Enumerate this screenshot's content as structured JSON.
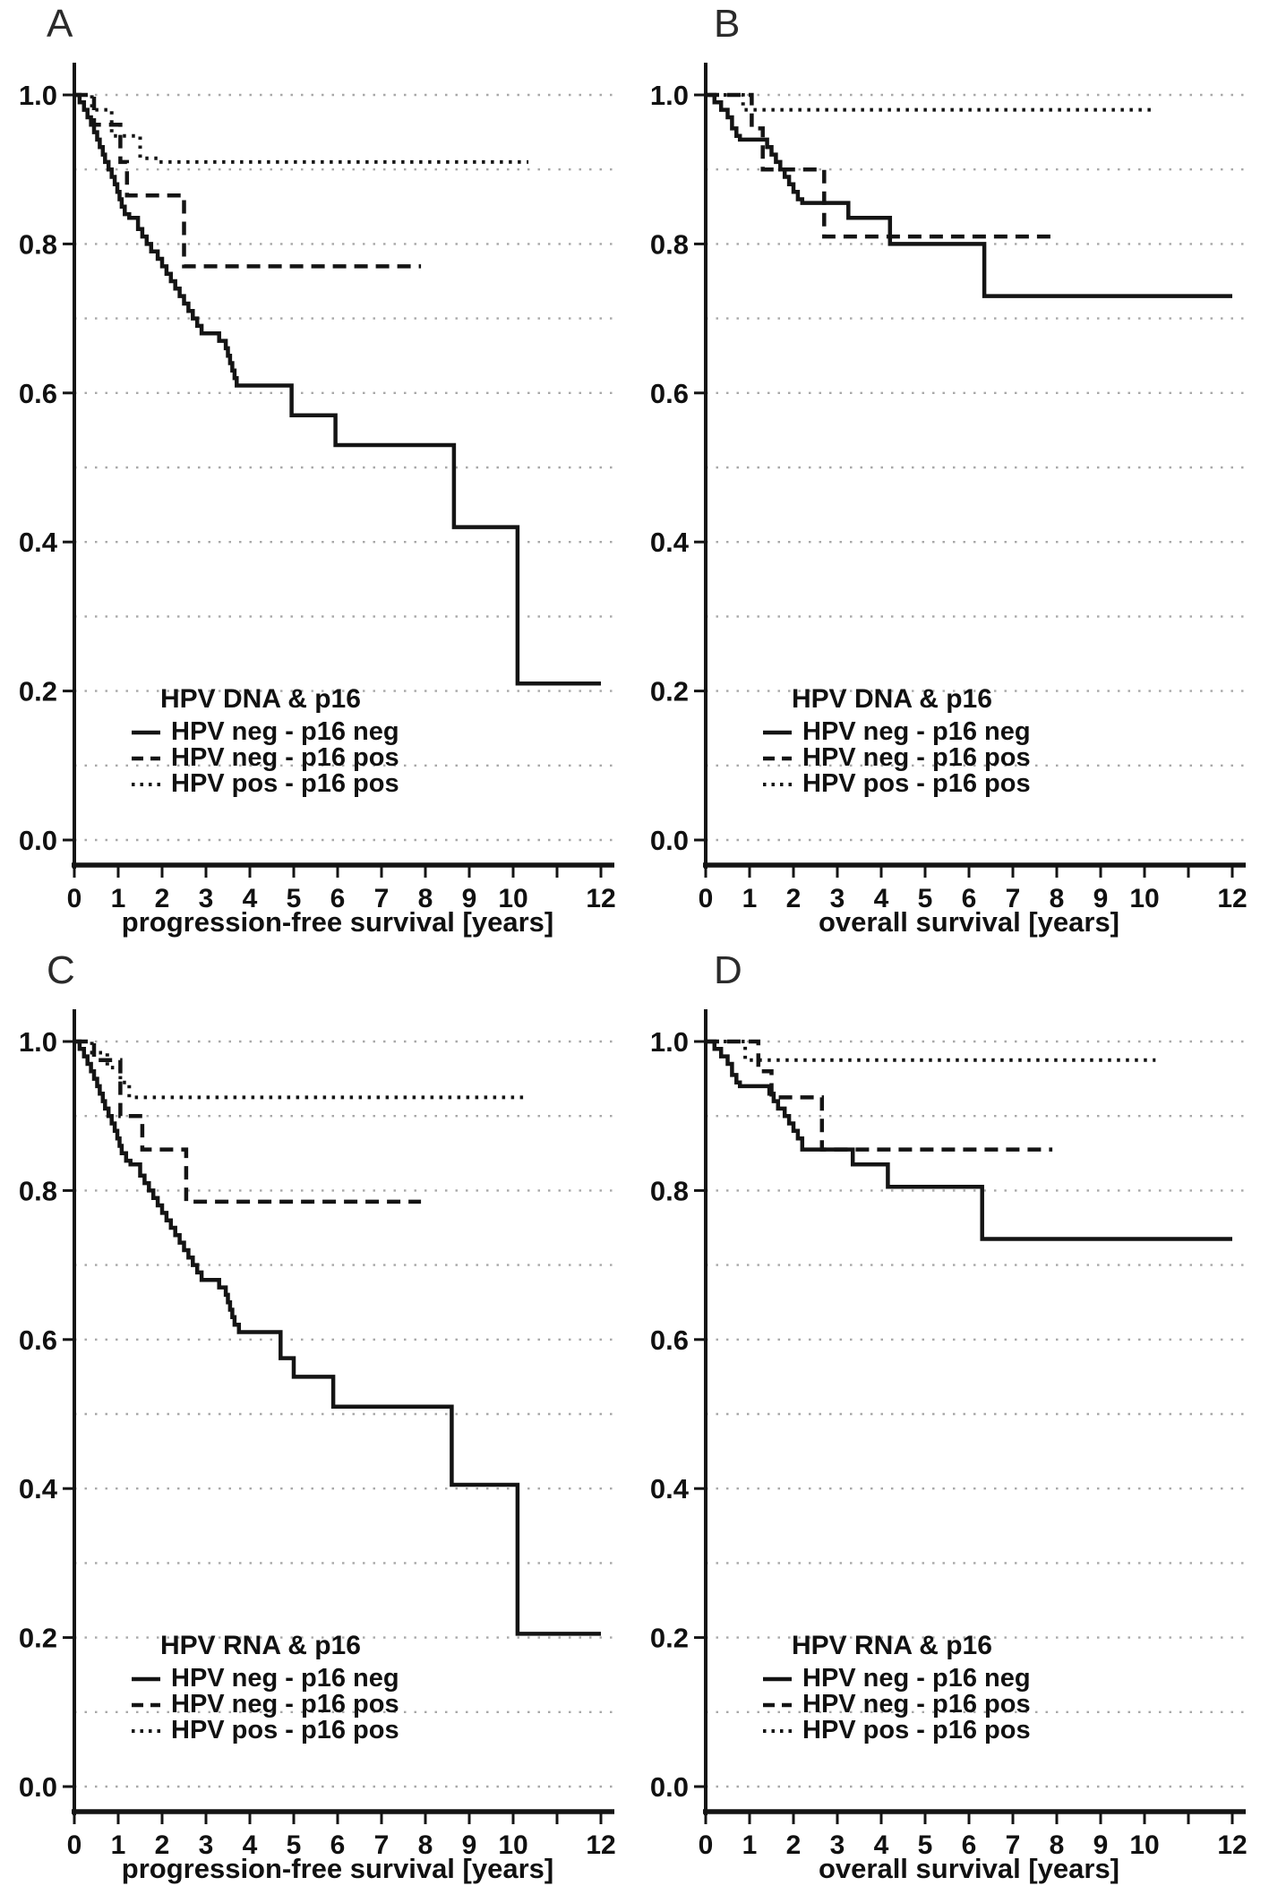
{
  "figure": {
    "background": "#ffffff",
    "curve_color": "#141414",
    "grid_color": "#a8a8a8",
    "text_color": "#111111",
    "grid_style": "dotted",
    "n_panels": 4
  },
  "chart_data": [
    {
      "panel_letter": "A",
      "type": "line",
      "subtype": "kaplan-meier-step",
      "legend_title": "HPV DNA & p16",
      "xlabel": "progression-free survival [years]",
      "ylabel": "",
      "xlim": [
        0,
        12
      ],
      "ylim": [
        0.0,
        1.0
      ],
      "xticks": [
        0,
        1,
        2,
        3,
        4,
        5,
        6,
        7,
        8,
        9,
        10,
        11,
        12
      ],
      "xtick_labels": [
        "0",
        "1",
        "2",
        "3",
        "4",
        "5",
        "6",
        "7",
        "8",
        "9",
        "10",
        "",
        "12"
      ],
      "yticks": [
        1.0,
        0.8,
        0.6,
        0.4,
        0.2,
        0.0
      ],
      "ytick_labels": [
        "1.0",
        "0.8",
        "0.6",
        "0.4",
        "0.2",
        "0.0"
      ],
      "grid_y_step": 0.1,
      "legend_position": "inside-lower-left",
      "series": [
        {
          "name": "HPV neg - p16 neg",
          "line": "solid",
          "points": [
            [
              0,
              1
            ],
            [
              0.12,
              0.99
            ],
            [
              0.22,
              0.98
            ],
            [
              0.3,
              0.97
            ],
            [
              0.38,
              0.96
            ],
            [
              0.45,
              0.95
            ],
            [
              0.52,
              0.94
            ],
            [
              0.58,
              0.93
            ],
            [
              0.65,
              0.92
            ],
            [
              0.7,
              0.91
            ],
            [
              0.78,
              0.9
            ],
            [
              0.85,
              0.89
            ],
            [
              0.92,
              0.88
            ],
            [
              0.98,
              0.87
            ],
            [
              1.03,
              0.86
            ],
            [
              1.08,
              0.85
            ],
            [
              1.15,
              0.84
            ],
            [
              1.25,
              0.835
            ],
            [
              1.45,
              0.82
            ],
            [
              1.55,
              0.81
            ],
            [
              1.65,
              0.8
            ],
            [
              1.75,
              0.79
            ],
            [
              1.9,
              0.78
            ],
            [
              2.0,
              0.77
            ],
            [
              2.1,
              0.76
            ],
            [
              2.2,
              0.75
            ],
            [
              2.3,
              0.74
            ],
            [
              2.4,
              0.73
            ],
            [
              2.5,
              0.72
            ],
            [
              2.6,
              0.71
            ],
            [
              2.7,
              0.7
            ],
            [
              2.8,
              0.69
            ],
            [
              2.9,
              0.68
            ],
            [
              3.3,
              0.67
            ],
            [
              3.45,
              0.66
            ],
            [
              3.5,
              0.65
            ],
            [
              3.55,
              0.64
            ],
            [
              3.6,
              0.63
            ],
            [
              3.65,
              0.62
            ],
            [
              3.7,
              0.61
            ],
            [
              4.95,
              0.57
            ],
            [
              5.95,
              0.53
            ],
            [
              8.65,
              0.42
            ],
            [
              10.1,
              0.21
            ],
            [
              12,
              0.21
            ]
          ]
        },
        {
          "name": "HPV neg - p16 pos",
          "line": "dashed",
          "points": [
            [
              0,
              1
            ],
            [
              0.45,
              0.96
            ],
            [
              1.05,
              0.91
            ],
            [
              1.2,
              0.865
            ],
            [
              2.5,
              0.77
            ],
            [
              7.9,
              0.77
            ]
          ]
        },
        {
          "name": "HPV pos - p16 pos",
          "line": "dotted",
          "points": [
            [
              0,
              1
            ],
            [
              0.4,
              0.98
            ],
            [
              0.85,
              0.945
            ],
            [
              1.5,
              0.915
            ],
            [
              1.9,
              0.91
            ],
            [
              10.35,
              0.91
            ]
          ]
        }
      ]
    },
    {
      "panel_letter": "B",
      "type": "line",
      "subtype": "kaplan-meier-step",
      "legend_title": "HPV DNA & p16",
      "xlabel": "overall survival [years]",
      "ylabel": "",
      "xlim": [
        0,
        12
      ],
      "ylim": [
        0.0,
        1.0
      ],
      "xticks": [
        0,
        1,
        2,
        3,
        4,
        5,
        6,
        7,
        8,
        9,
        10,
        11,
        12
      ],
      "xtick_labels": [
        "0",
        "1",
        "2",
        "3",
        "4",
        "5",
        "6",
        "7",
        "8",
        "9",
        "10",
        "",
        "12"
      ],
      "yticks": [
        1.0,
        0.8,
        0.6,
        0.4,
        0.2,
        0.0
      ],
      "ytick_labels": [
        "1.0",
        "0.8",
        "0.6",
        "0.4",
        "0.2",
        "0.0"
      ],
      "grid_y_step": 0.1,
      "legend_position": "inside-lower-left",
      "series": [
        {
          "name": "HPV neg - p16 neg",
          "line": "solid",
          "points": [
            [
              0,
              1
            ],
            [
              0.2,
              0.99
            ],
            [
              0.35,
              0.98
            ],
            [
              0.5,
              0.97
            ],
            [
              0.6,
              0.955
            ],
            [
              0.7,
              0.945
            ],
            [
              0.78,
              0.94
            ],
            [
              1.4,
              0.93
            ],
            [
              1.5,
              0.92
            ],
            [
              1.6,
              0.91
            ],
            [
              1.7,
              0.9
            ],
            [
              1.8,
              0.89
            ],
            [
              1.9,
              0.88
            ],
            [
              2.0,
              0.87
            ],
            [
              2.1,
              0.86
            ],
            [
              2.2,
              0.855
            ],
            [
              3.25,
              0.835
            ],
            [
              4.2,
              0.8
            ],
            [
              6.35,
              0.73
            ],
            [
              12,
              0.73
            ]
          ]
        },
        {
          "name": "HPV neg - p16 pos",
          "line": "dashed",
          "points": [
            [
              0,
              1
            ],
            [
              1.05,
              0.955
            ],
            [
              1.3,
              0.9
            ],
            [
              2.7,
              0.81
            ],
            [
              7.9,
              0.81
            ]
          ]
        },
        {
          "name": "HPV pos - p16 pos",
          "line": "dotted",
          "points": [
            [
              0,
              1
            ],
            [
              0.85,
              0.98
            ],
            [
              10.2,
              0.98
            ]
          ]
        }
      ]
    },
    {
      "panel_letter": "C",
      "type": "line",
      "subtype": "kaplan-meier-step",
      "legend_title": "HPV RNA & p16",
      "xlabel": "progression-free survival [years]",
      "ylabel": "",
      "xlim": [
        0,
        12
      ],
      "ylim": [
        0.0,
        1.0
      ],
      "xticks": [
        0,
        1,
        2,
        3,
        4,
        5,
        6,
        7,
        8,
        9,
        10,
        11,
        12
      ],
      "xtick_labels": [
        "0",
        "1",
        "2",
        "3",
        "4",
        "5",
        "6",
        "7",
        "8",
        "9",
        "10",
        "",
        "12"
      ],
      "yticks": [
        1.0,
        0.8,
        0.6,
        0.4,
        0.2,
        0.0
      ],
      "ytick_labels": [
        "1.0",
        "0.8",
        "0.6",
        "0.4",
        "0.2",
        "0.0"
      ],
      "grid_y_step": 0.1,
      "legend_position": "inside-lower-left",
      "series": [
        {
          "name": "HPV neg - p16 neg",
          "line": "solid",
          "points": [
            [
              0,
              1
            ],
            [
              0.12,
              0.99
            ],
            [
              0.22,
              0.98
            ],
            [
              0.3,
              0.97
            ],
            [
              0.38,
              0.96
            ],
            [
              0.45,
              0.95
            ],
            [
              0.52,
              0.94
            ],
            [
              0.58,
              0.93
            ],
            [
              0.65,
              0.92
            ],
            [
              0.7,
              0.91
            ],
            [
              0.78,
              0.9
            ],
            [
              0.85,
              0.89
            ],
            [
              0.92,
              0.88
            ],
            [
              0.98,
              0.87
            ],
            [
              1.03,
              0.86
            ],
            [
              1.08,
              0.85
            ],
            [
              1.18,
              0.84
            ],
            [
              1.28,
              0.835
            ],
            [
              1.5,
              0.82
            ],
            [
              1.6,
              0.81
            ],
            [
              1.7,
              0.8
            ],
            [
              1.8,
              0.79
            ],
            [
              1.9,
              0.78
            ],
            [
              2.0,
              0.77
            ],
            [
              2.1,
              0.76
            ],
            [
              2.2,
              0.75
            ],
            [
              2.3,
              0.74
            ],
            [
              2.4,
              0.73
            ],
            [
              2.5,
              0.72
            ],
            [
              2.6,
              0.71
            ],
            [
              2.7,
              0.7
            ],
            [
              2.8,
              0.69
            ],
            [
              2.9,
              0.68
            ],
            [
              3.3,
              0.67
            ],
            [
              3.45,
              0.66
            ],
            [
              3.5,
              0.65
            ],
            [
              3.55,
              0.64
            ],
            [
              3.6,
              0.63
            ],
            [
              3.65,
              0.62
            ],
            [
              3.75,
              0.61
            ],
            [
              4.7,
              0.575
            ],
            [
              5.0,
              0.55
            ],
            [
              5.9,
              0.51
            ],
            [
              8.6,
              0.405
            ],
            [
              10.1,
              0.205
            ],
            [
              12,
              0.205
            ]
          ]
        },
        {
          "name": "HPV neg - p16 pos",
          "line": "dashed",
          "points": [
            [
              0,
              1
            ],
            [
              0.45,
              0.975
            ],
            [
              1.05,
              0.9
            ],
            [
              1.55,
              0.855
            ],
            [
              2.55,
              0.785
            ],
            [
              7.9,
              0.785
            ]
          ]
        },
        {
          "name": "HPV pos - p16 pos",
          "line": "dotted",
          "points": [
            [
              0,
              1
            ],
            [
              0.4,
              0.985
            ],
            [
              0.75,
              0.965
            ],
            [
              1.05,
              0.945
            ],
            [
              1.25,
              0.925
            ],
            [
              10.35,
              0.925
            ]
          ]
        }
      ]
    },
    {
      "panel_letter": "D",
      "type": "line",
      "subtype": "kaplan-meier-step",
      "legend_title": "HPV RNA & p16",
      "xlabel": "overall survival [years]",
      "ylabel": "",
      "xlim": [
        0,
        12
      ],
      "ylim": [
        0.0,
        1.0
      ],
      "xticks": [
        0,
        1,
        2,
        3,
        4,
        5,
        6,
        7,
        8,
        9,
        10,
        11,
        12
      ],
      "xtick_labels": [
        "0",
        "1",
        "2",
        "3",
        "4",
        "5",
        "6",
        "7",
        "8",
        "9",
        "10",
        "",
        "12"
      ],
      "yticks": [
        1.0,
        0.8,
        0.6,
        0.4,
        0.2,
        0.0
      ],
      "ytick_labels": [
        "1.0",
        "0.8",
        "0.6",
        "0.4",
        "0.2",
        "0.0"
      ],
      "grid_y_step": 0.1,
      "legend_position": "inside-lower-left",
      "series": [
        {
          "name": "HPV neg - p16 neg",
          "line": "solid",
          "points": [
            [
              0,
              1
            ],
            [
              0.2,
              0.99
            ],
            [
              0.35,
              0.98
            ],
            [
              0.5,
              0.97
            ],
            [
              0.6,
              0.955
            ],
            [
              0.7,
              0.945
            ],
            [
              0.78,
              0.94
            ],
            [
              1.45,
              0.93
            ],
            [
              1.55,
              0.92
            ],
            [
              1.65,
              0.91
            ],
            [
              1.8,
              0.9
            ],
            [
              1.9,
              0.89
            ],
            [
              2.0,
              0.88
            ],
            [
              2.1,
              0.87
            ],
            [
              2.2,
              0.855
            ],
            [
              3.35,
              0.835
            ],
            [
              4.15,
              0.805
            ],
            [
              6.3,
              0.735
            ],
            [
              12,
              0.735
            ]
          ]
        },
        {
          "name": "HPV neg - p16 pos",
          "line": "dashed",
          "points": [
            [
              0,
              1
            ],
            [
              1.2,
              0.96
            ],
            [
              1.5,
              0.925
            ],
            [
              2.65,
              0.855
            ],
            [
              7.9,
              0.855
            ]
          ]
        },
        {
          "name": "HPV pos - p16 pos",
          "line": "dotted",
          "points": [
            [
              0,
              1
            ],
            [
              0.9,
              0.975
            ],
            [
              10.25,
              0.975
            ]
          ]
        }
      ]
    }
  ]
}
